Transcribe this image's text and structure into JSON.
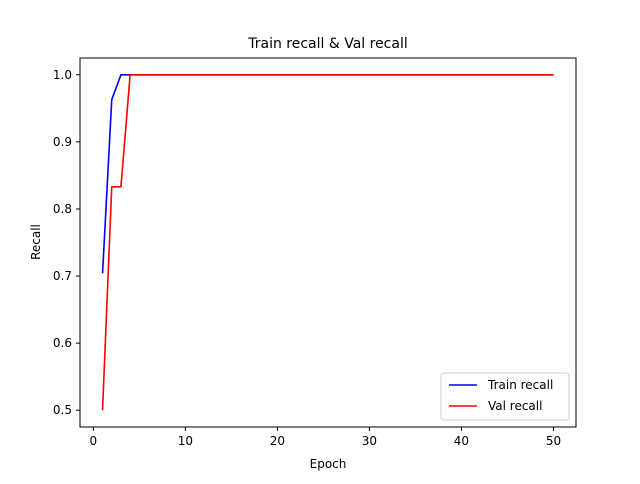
{
  "chart_data": {
    "type": "line",
    "title": "Train recall & Val recall",
    "xlabel": "Epoch",
    "ylabel": "Recall",
    "xlim": [
      -1.45,
      52.45
    ],
    "ylim": [
      0.475,
      1.025
    ],
    "xticks": [
      0,
      10,
      20,
      30,
      40,
      50
    ],
    "xtick_labels": [
      "0",
      "10",
      "20",
      "30",
      "40",
      "50"
    ],
    "yticks": [
      0.5,
      0.6,
      0.7,
      0.8,
      0.9,
      1.0
    ],
    "ytick_labels": [
      "0.5",
      "0.6",
      "0.7",
      "0.8",
      "0.9",
      "1.0"
    ],
    "grid": false,
    "legend_position": "lower-right",
    "series": [
      {
        "name": "Train recall",
        "color": "#0000ff",
        "x": [
          1,
          2,
          3,
          4,
          5,
          10,
          20,
          30,
          40,
          50
        ],
        "y": [
          0.704,
          0.963,
          1.0,
          1.0,
          1.0,
          1.0,
          1.0,
          1.0,
          1.0,
          1.0
        ]
      },
      {
        "name": "Val recall",
        "color": "#ff0000",
        "x": [
          1,
          2,
          3,
          4,
          5,
          10,
          20,
          30,
          40,
          50
        ],
        "y": [
          0.5,
          0.833,
          0.833,
          1.0,
          1.0,
          1.0,
          1.0,
          1.0,
          1.0,
          1.0
        ]
      }
    ]
  }
}
